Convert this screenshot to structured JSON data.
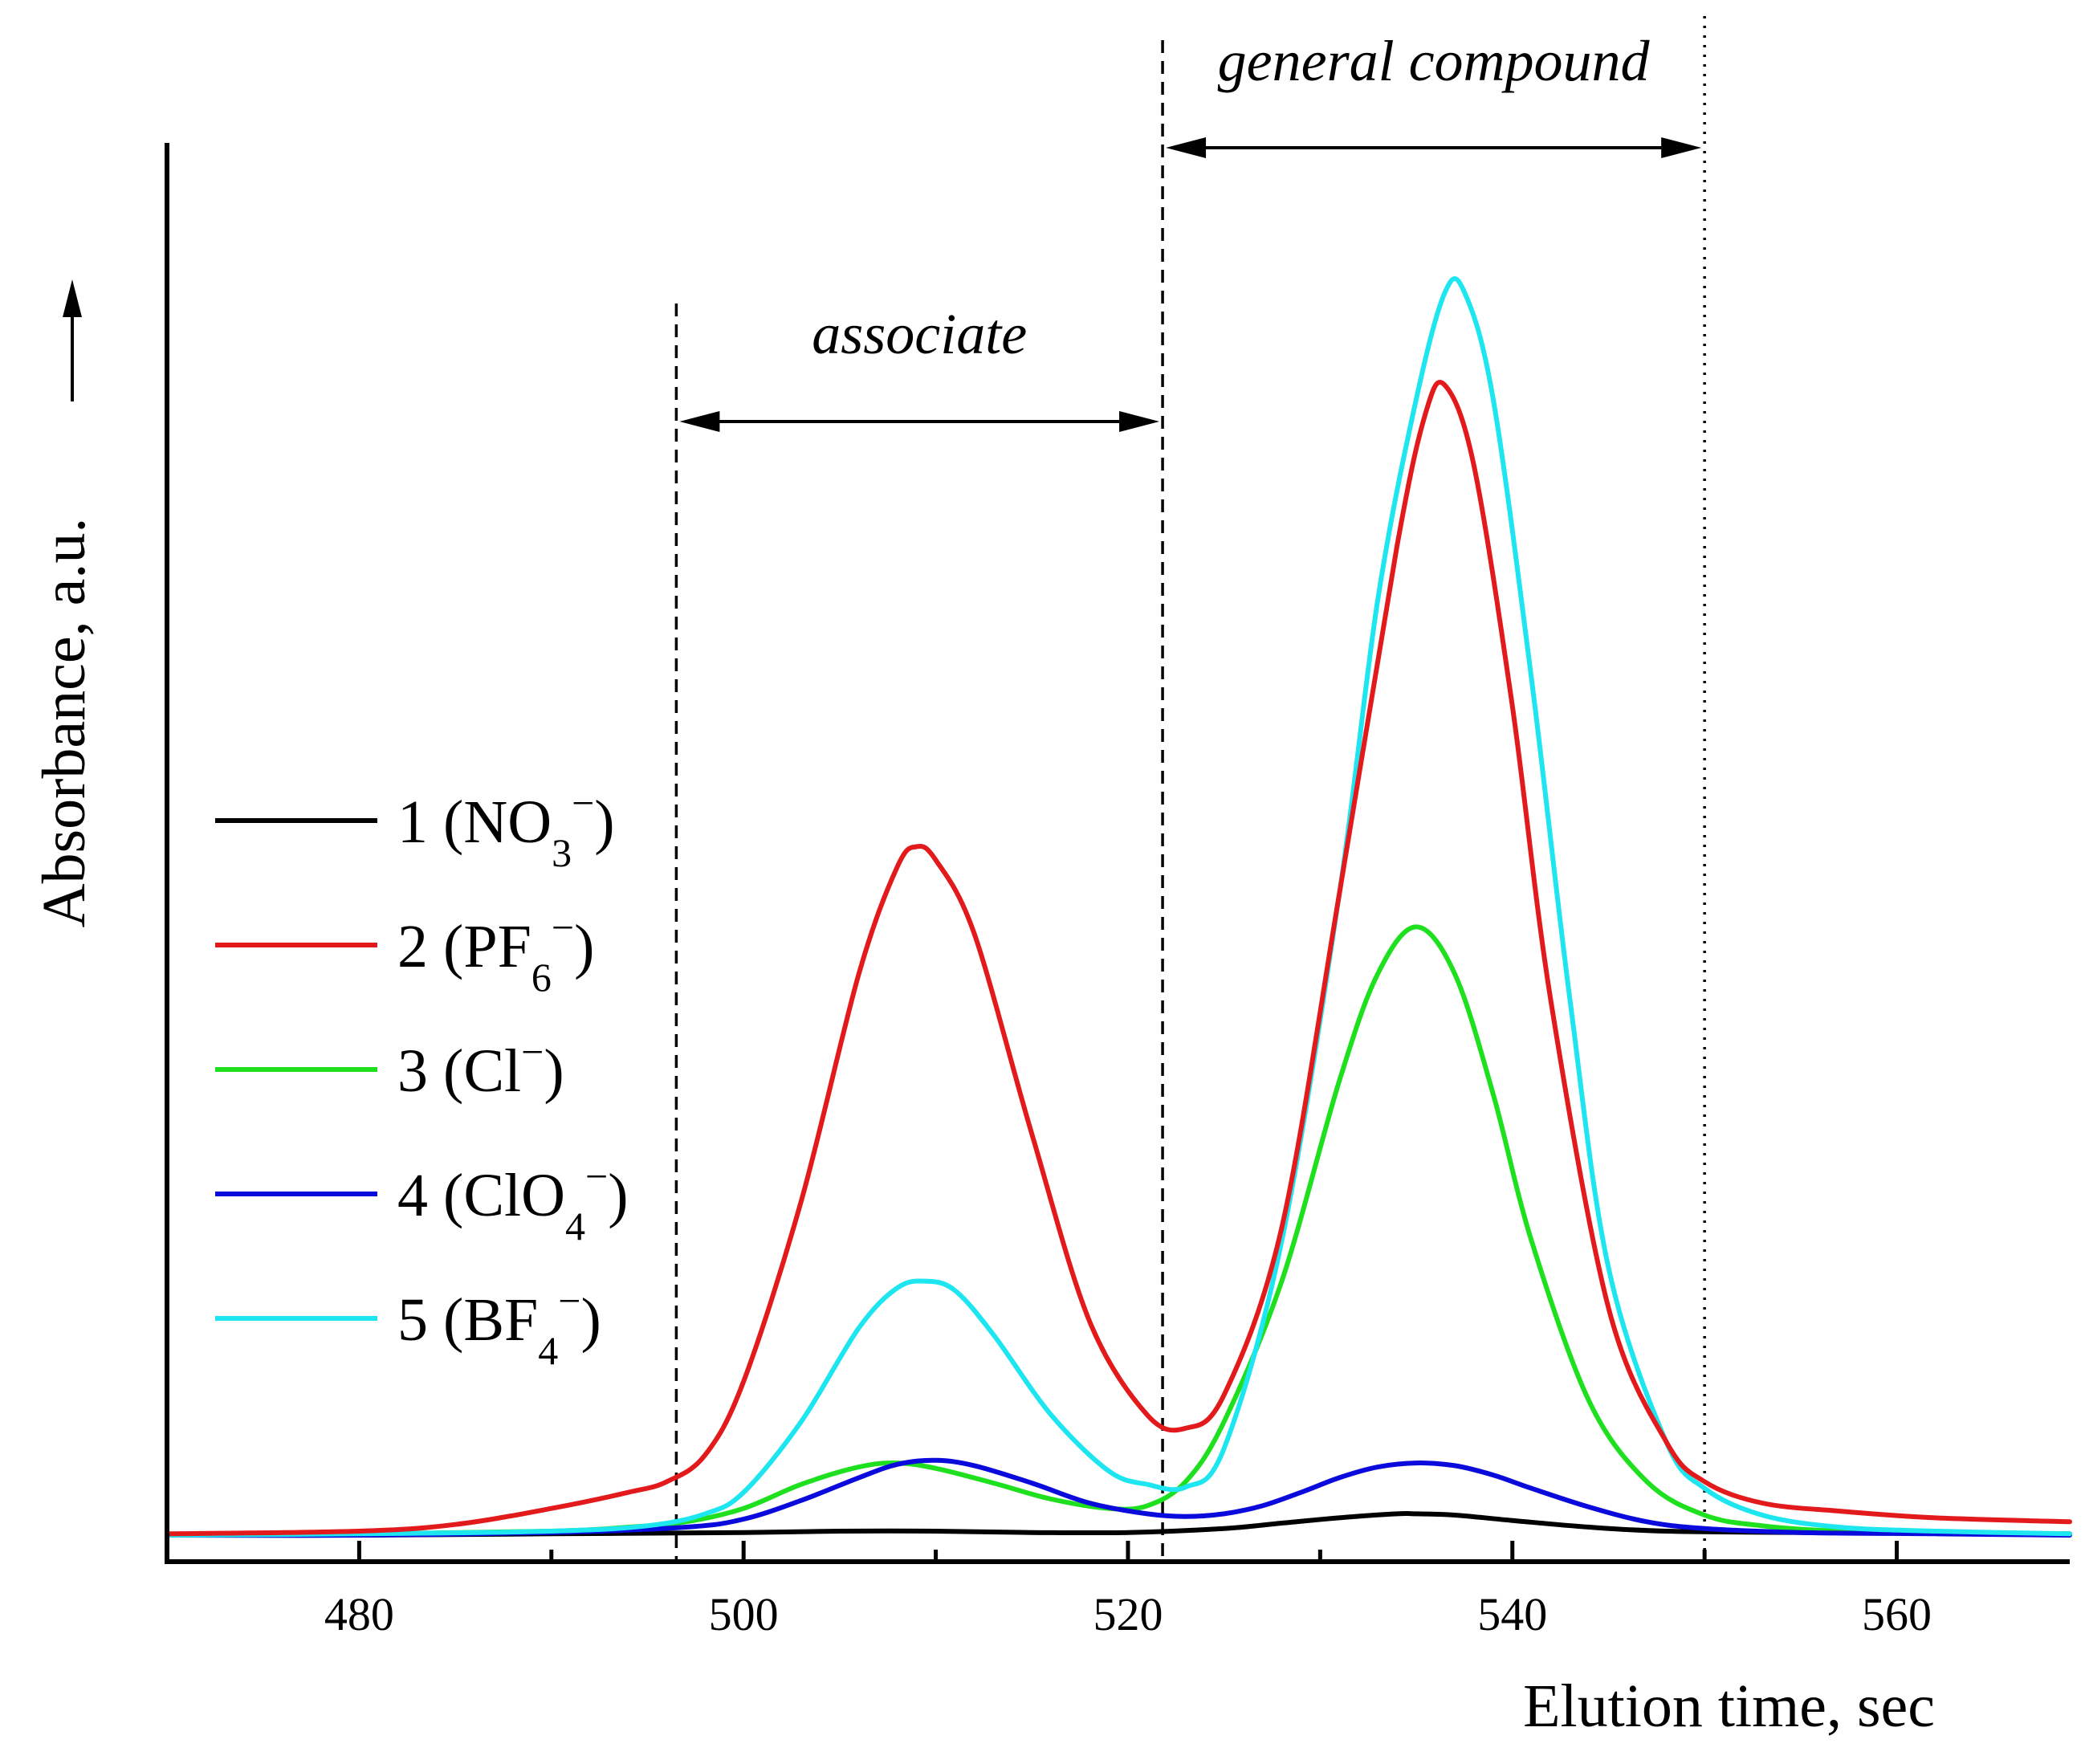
{
  "chart_data": {
    "type": "line",
    "title": "",
    "xlabel": "Elution time, sec",
    "ylabel": "Absorbance, a.u.",
    "ylabel_arrow": "⟶",
    "xlim": [
      470,
      569
    ],
    "ylim": [
      0,
      100
    ],
    "xticks": [
      480,
      500,
      520,
      540,
      560
    ],
    "xticks_minor": [
      470,
      490,
      510,
      530,
      550
    ],
    "series": [
      {
        "name": "1",
        "label_num": "1",
        "ion_base": "NO",
        "ion_sub": "3",
        "ion_sup": "−",
        "color": "#000000",
        "x": [
          470,
          480,
          490,
          500,
          505,
          510,
          515,
          520,
          525,
          528,
          531,
          534,
          535,
          537,
          540,
          544,
          548,
          555,
          569
        ],
        "y": [
          0.0,
          0.0,
          0.1,
          0.2,
          0.3,
          0.3,
          0.2,
          0.2,
          0.5,
          0.9,
          1.3,
          1.6,
          1.6,
          1.5,
          1.1,
          0.6,
          0.3,
          0.2,
          0.1
        ]
      },
      {
        "name": "2",
        "label_num": "2",
        "ion_base": "PF",
        "ion_sub": "6",
        "ion_sup": "−",
        "color": "#e31a1c",
        "x": [
          470,
          480,
          485,
          490,
          494,
          496,
          498,
          500,
          503,
          506,
          508,
          509,
          510,
          512,
          515,
          518,
          521,
          523,
          525,
          528,
          531,
          534,
          535.5,
          536.5,
          538,
          540,
          542,
          545,
          548,
          550,
          553,
          557,
          562,
          569
        ],
        "y": [
          0.1,
          0.3,
          0.8,
          2.0,
          3.2,
          4.0,
          6.0,
          11.5,
          25.0,
          42.0,
          50.0,
          51.5,
          50.5,
          45.0,
          30.0,
          16.0,
          9.0,
          8.0,
          10.5,
          23.0,
          48.0,
          74.0,
          84.0,
          86.0,
          80.0,
          62.0,
          40.0,
          17.0,
          7.0,
          4.0,
          2.4,
          1.8,
          1.3,
          1.0
        ]
      },
      {
        "name": "3",
        "label_num": "3",
        "ion_base": "Cl",
        "ion_sub": "",
        "ion_sup": "−",
        "color": "#1ee01e",
        "x": [
          470,
          480,
          490,
          494,
          497,
          500,
          503,
          506,
          508,
          510,
          513,
          516,
          519,
          521,
          523,
          525,
          528,
          531,
          533,
          535,
          537,
          539,
          541,
          544,
          547,
          550,
          553,
          557,
          562,
          569
        ],
        "y": [
          0.0,
          0.1,
          0.3,
          0.6,
          1.0,
          2.0,
          3.8,
          5.1,
          5.4,
          5.0,
          3.9,
          2.7,
          2.0,
          2.2,
          4.0,
          8.5,
          19.0,
          34.0,
          42.0,
          45.5,
          42.0,
          33.0,
          22.0,
          10.0,
          4.0,
          1.5,
          0.7,
          0.3,
          0.2,
          0.1
        ]
      },
      {
        "name": "4",
        "label_num": "4",
        "ion_base": "ClO",
        "ion_sub": "4",
        "ion_sup": "−",
        "color": "#0a0adc",
        "x": [
          470,
          480,
          490,
          497,
          500,
          503,
          506,
          508,
          510,
          512,
          515,
          518,
          521,
          523,
          525,
          527,
          529,
          531,
          533,
          535,
          537,
          539,
          541,
          544,
          547,
          550,
          555,
          562,
          569
        ],
        "y": [
          0.0,
          0.0,
          0.2,
          0.6,
          1.2,
          2.6,
          4.3,
          5.3,
          5.6,
          5.2,
          3.9,
          2.4,
          1.6,
          1.4,
          1.6,
          2.2,
          3.2,
          4.3,
          5.1,
          5.4,
          5.2,
          4.5,
          3.5,
          2.1,
          1.0,
          0.5,
          0.2,
          0.1,
          0.0
        ]
      },
      {
        "name": "5",
        "label_num": "5",
        "ion_base": "BF",
        "ion_sub": "4",
        "ion_sup": "−",
        "color": "#1ee6f0",
        "x": [
          470,
          480,
          490,
          495,
          498,
          500,
          503,
          506,
          508,
          509.5,
          511,
          513,
          516,
          519,
          521,
          523,
          525,
          528,
          531,
          533,
          535,
          536.5,
          537.5,
          539,
          541,
          543,
          545,
          548,
          550,
          553,
          557,
          562,
          569
        ],
        "y": [
          0.0,
          0.1,
          0.3,
          0.7,
          1.6,
          3.2,
          8.5,
          15.5,
          18.5,
          19.0,
          18.3,
          15.0,
          9.0,
          4.8,
          3.8,
          3.6,
          6.5,
          22.0,
          48.0,
          70.0,
          85.0,
          93.0,
          93.0,
          85.0,
          64.0,
          40.0,
          20.0,
          7.0,
          3.5,
          1.5,
          0.6,
          0.3,
          0.1
        ]
      }
    ],
    "regions": [
      {
        "name": "associate",
        "label": "associate",
        "x_start": 496.5,
        "x_end": 521.8
      },
      {
        "name": "general-compound",
        "label": "general compound",
        "x_start": 521.8,
        "x_end": 550.0
      }
    ],
    "legend_position": "middle-left"
  }
}
